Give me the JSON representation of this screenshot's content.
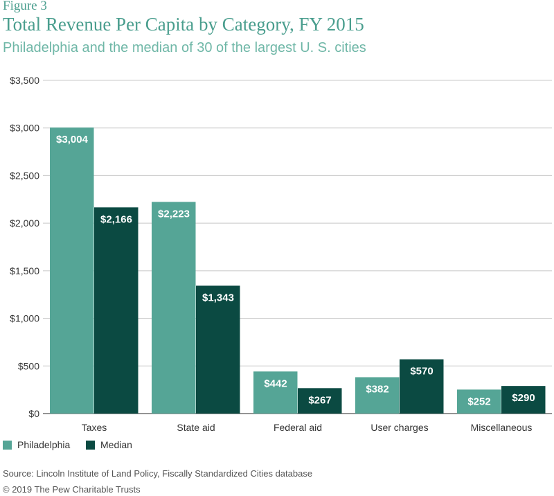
{
  "figure_label": "Figure 3",
  "chart_data": {
    "type": "bar",
    "title": "Total Revenue Per Capita by Category, FY 2015",
    "subtitle": "Philadelphia and the median of 30 of the largest U. S. cities",
    "categories": [
      "Taxes",
      "State aid",
      "Federal aid",
      "User charges",
      "Miscellaneous"
    ],
    "series": [
      {
        "name": "Philadelphia",
        "values": [
          3004,
          2223,
          442,
          382,
          252
        ],
        "labels": [
          "$3,004",
          "$2,223",
          "$442",
          "$382",
          "$252"
        ],
        "color": "#55a596"
      },
      {
        "name": "Median",
        "values": [
          2166,
          1343,
          267,
          570,
          290
        ],
        "labels": [
          "$2,166",
          "$1,343",
          "$267",
          "$570",
          "$290"
        ],
        "color": "#0b4a42"
      }
    ],
    "ylim": [
      0,
      3500
    ],
    "yticks": [
      0,
      500,
      1000,
      1500,
      2000,
      2500,
      3000,
      3500
    ],
    "ytick_labels": [
      "$0",
      "$500",
      "$1,000",
      "$1,500",
      "$2,000",
      "$2,500",
      "$3,000",
      "$3,500"
    ],
    "grid": true,
    "legend_position": "bottom-left"
  },
  "source": "Source: Lincoln Institute of Land Policy, Fiscally Standardized Cities database",
  "copyright": "© 2019 The Pew Charitable Trusts"
}
